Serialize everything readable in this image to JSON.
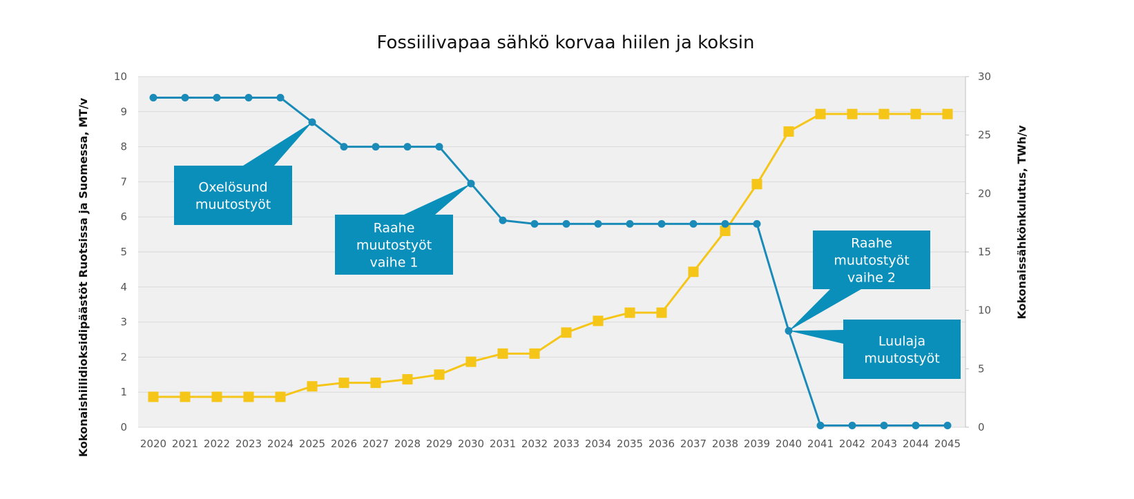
{
  "chart_data": {
    "type": "line",
    "title": "Fossiilivapaa sähkö korvaa hiilen ja koksin",
    "categories": [
      "2020",
      "2021",
      "2022",
      "2023",
      "2024",
      "2025",
      "2026",
      "2027",
      "2028",
      "2029",
      "2030",
      "2031",
      "2032",
      "2033",
      "2034",
      "2035",
      "2036",
      "2037",
      "2038",
      "2039",
      "2040",
      "2041",
      "2042",
      "2043",
      "2044",
      "2045"
    ],
    "y_left": {
      "label": "Kokonaishiilidioksidipäästöt Ruotsissa ja Suomessa, MT/v",
      "range": [
        0,
        10
      ],
      "ticks": [
        "0",
        "1",
        "2",
        "3",
        "4",
        "5",
        "6",
        "7",
        "8",
        "9",
        "10"
      ]
    },
    "y_right": {
      "label": "Kokonaissähkönkulutus, TWh/v",
      "range": [
        0,
        30
      ],
      "ticks": [
        "0",
        "5",
        "10",
        "15",
        "20",
        "25",
        "30"
      ]
    },
    "grid": true,
    "legend": "none",
    "series": [
      {
        "axis": "left",
        "marker": "circle",
        "color": "#1a8bb8",
        "values": [
          9.4,
          9.4,
          9.4,
          9.4,
          9.4,
          8.7,
          8.0,
          8.0,
          8.0,
          8.0,
          6.95,
          5.9,
          5.8,
          5.8,
          5.8,
          5.8,
          5.8,
          5.8,
          5.8,
          5.8,
          2.75,
          0.05,
          0.05,
          0.05,
          0.05,
          0.05
        ]
      },
      {
        "axis": "right",
        "marker": "square",
        "color": "#f5c518",
        "values": [
          2.6,
          2.6,
          2.6,
          2.6,
          2.6,
          3.5,
          3.8,
          3.8,
          4.1,
          4.5,
          5.6,
          6.3,
          6.3,
          8.1,
          9.1,
          9.8,
          9.8,
          13.3,
          16.8,
          20.8,
          25.3,
          26.8,
          26.8,
          26.8,
          26.8,
          26.8
        ]
      }
    ],
    "annotations": [
      {
        "lines": [
          "Oxelösund",
          "muutostyöt"
        ],
        "year": "2025",
        "color": "#0a8fbb"
      },
      {
        "lines": [
          "Raahe",
          "muutostyöt",
          "vaihe 1"
        ],
        "year": "2030",
        "color": "#0a8fbb"
      },
      {
        "lines": [
          "Raahe",
          "muutostyöt",
          "vaihe 2"
        ],
        "year": "2040",
        "color": "#0a8fbb"
      },
      {
        "lines": [
          "Luulaja",
          "muutostyöt"
        ],
        "year": "2040",
        "color": "#0a8fbb"
      }
    ]
  }
}
